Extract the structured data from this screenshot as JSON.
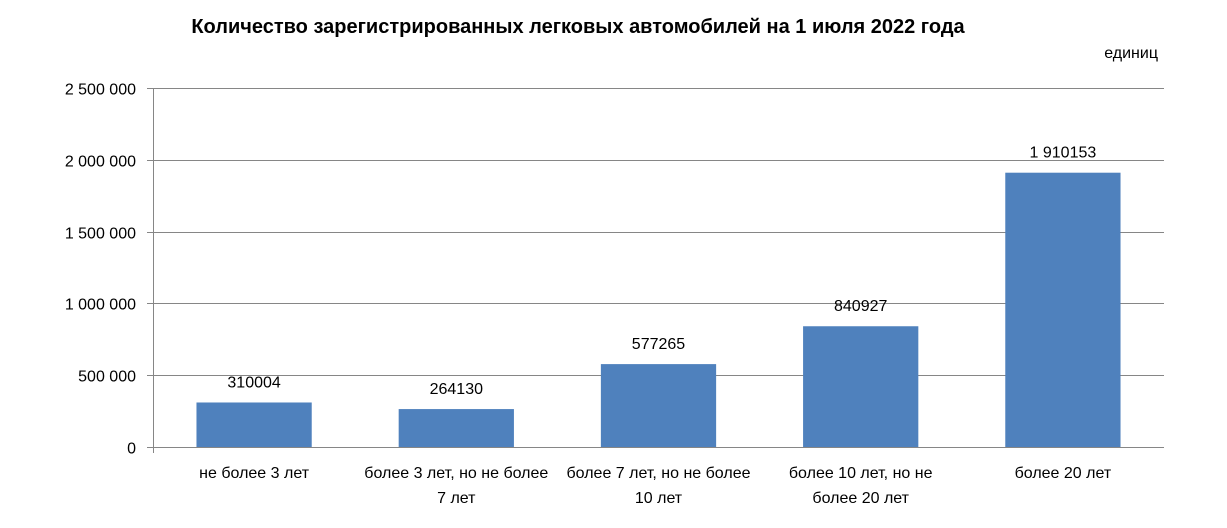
{
  "chart_data": {
    "type": "bar",
    "title": "Количество зарегистрированных легковых автомобилей на 1 июля 2022 года",
    "unit_label": "единиц",
    "xlabel": "",
    "ylabel": "",
    "ylim": [
      0,
      2500000
    ],
    "yticks": [
      0,
      500000,
      1000000,
      1500000,
      2000000,
      2500000
    ],
    "ytick_labels": [
      "0",
      "500 000",
      "1 000 000",
      "1 500 000",
      "2 000 000",
      "2 500 000"
    ],
    "grid": true,
    "legend": "none",
    "bar_color": "#4f81bd",
    "categories": [
      [
        "не более 3 лет"
      ],
      [
        "более 3 лет, но не более",
        "7 лет"
      ],
      [
        "более 7 лет, но не более",
        "10 лет"
      ],
      [
        "более 10 лет, но не",
        "более 20 лет"
      ],
      [
        "более 20 лет"
      ]
    ],
    "values": [
      310004,
      264130,
      577265,
      840927,
      1910153
    ],
    "data_labels": [
      "310004",
      "264130",
      "577265",
      "840927",
      "1 910153"
    ]
  }
}
